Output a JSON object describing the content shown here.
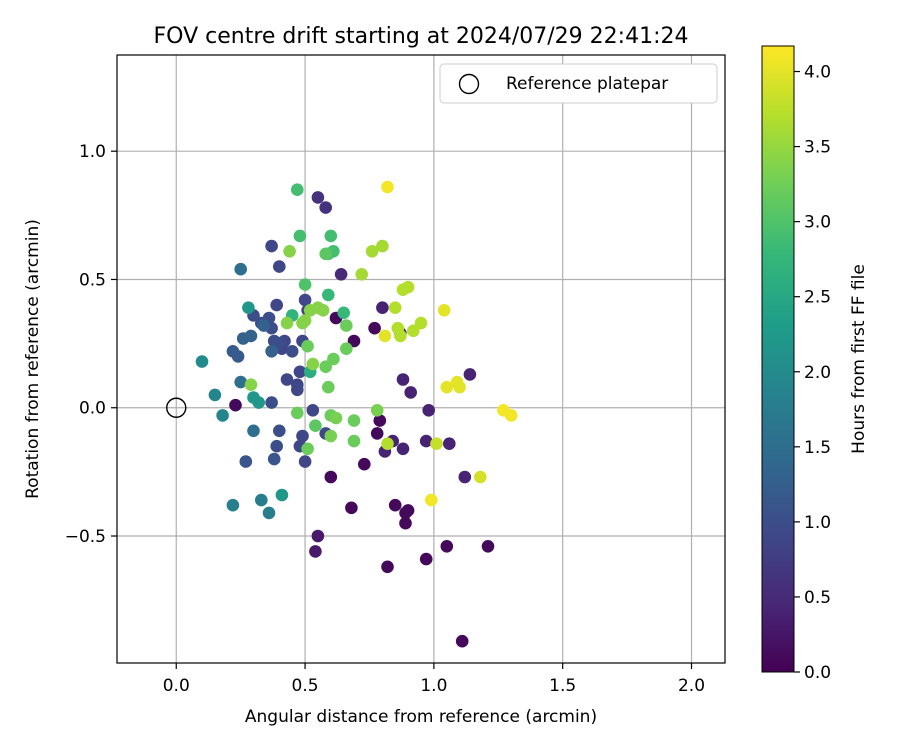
{
  "chart_data": {
    "type": "scatter",
    "title": "FOV centre drift starting at 2024/07/29 22:41:24",
    "xlabel": "Angular distance from reference (arcmin)",
    "ylabel": "Rotation from reference (arcmin)",
    "xlim": [
      -0.23,
      2.13
    ],
    "ylim": [
      -0.995,
      1.375
    ],
    "xticks": [
      "0.0",
      "0.5",
      "1.0",
      "1.5",
      "2.0"
    ],
    "xtick_values": [
      0,
      0.5,
      1.0,
      1.5,
      2.0
    ],
    "yticks": [
      "−0.5",
      "0.0",
      "0.5",
      "1.0"
    ],
    "ytick_values": [
      -0.5,
      0,
      0.5,
      1.0
    ],
    "grid": true,
    "legend": {
      "label": "Reference platepar",
      "position": "top-right"
    },
    "reference_point": {
      "x": 0.0,
      "y": 0.0
    },
    "colorbar": {
      "label": "Hours from first FF file",
      "range": [
        0.0,
        4.17
      ],
      "ticks": [
        "0.0",
        "0.5",
        "1.0",
        "1.5",
        "2.0",
        "2.5",
        "3.0",
        "3.5",
        "4.0"
      ],
      "tick_values": [
        0,
        0.5,
        1.0,
        1.5,
        2.0,
        2.5,
        3.0,
        3.5,
        4.0
      ],
      "colormap": "viridis",
      "stops": [
        "#440154",
        "#482878",
        "#3e4989",
        "#31688e",
        "#26828e",
        "#1f9e89",
        "#35b779",
        "#6ece58",
        "#b5de2b",
        "#fde725"
      ]
    },
    "points": [
      [
        0.23,
        0.01,
        0.1
      ],
      [
        0.62,
        0.35,
        0.1
      ],
      [
        0.69,
        0.26,
        0.1
      ],
      [
        0.77,
        0.31,
        0.1
      ],
      [
        0.6,
        -0.27,
        0.1
      ],
      [
        0.73,
        -0.22,
        0.1
      ],
      [
        0.78,
        -0.1,
        0.1
      ],
      [
        0.79,
        -0.05,
        0.1
      ],
      [
        0.68,
        -0.39,
        0.1
      ],
      [
        0.85,
        -0.38,
        0.1
      ],
      [
        0.89,
        -0.41,
        0.1
      ],
      [
        0.89,
        -0.45,
        0.1
      ],
      [
        0.9,
        -0.4,
        0.1
      ],
      [
        0.82,
        -0.62,
        0.1
      ],
      [
        0.97,
        -0.59,
        0.1
      ],
      [
        1.05,
        -0.54,
        0.1
      ],
      [
        1.21,
        -0.54,
        0.1
      ],
      [
        1.11,
        -0.91,
        0.1
      ],
      [
        0.54,
        -0.56,
        0.3
      ],
      [
        0.55,
        -0.5,
        0.3
      ],
      [
        0.8,
        0.39,
        0.4
      ],
      [
        0.87,
        0.29,
        0.4
      ],
      [
        0.81,
        -0.17,
        0.4
      ],
      [
        0.84,
        -0.13,
        0.4
      ],
      [
        0.88,
        -0.16,
        0.4
      ],
      [
        0.91,
        0.06,
        0.4
      ],
      [
        0.88,
        0.11,
        0.4
      ],
      [
        0.98,
        -0.01,
        0.4
      ],
      [
        0.97,
        -0.13,
        0.4
      ],
      [
        1.06,
        -0.14,
        0.4
      ],
      [
        1.14,
        0.13,
        0.4
      ],
      [
        1.12,
        -0.27,
        0.4
      ],
      [
        0.64,
        0.52,
        0.5
      ],
      [
        0.55,
        0.82,
        0.6
      ],
      [
        0.58,
        0.78,
        0.6
      ],
      [
        0.37,
        0.63,
        0.9
      ],
      [
        0.4,
        0.55,
        0.9
      ],
      [
        0.39,
        0.4,
        0.9
      ],
      [
        0.5,
        0.42,
        0.9
      ],
      [
        0.51,
        0.38,
        0.9
      ],
      [
        0.42,
        0.26,
        0.9
      ],
      [
        0.41,
        0.23,
        0.9
      ],
      [
        0.49,
        0.26,
        0.9
      ],
      [
        0.48,
        0.14,
        0.9
      ],
      [
        0.47,
        0.09,
        0.9
      ],
      [
        0.47,
        0.07,
        0.9
      ],
      [
        0.43,
        0.11,
        0.9
      ],
      [
        0.53,
        -0.01,
        0.9
      ],
      [
        0.49,
        -0.11,
        0.9
      ],
      [
        0.48,
        -0.15,
        0.9
      ],
      [
        0.5,
        -0.21,
        0.9
      ],
      [
        0.58,
        -0.1,
        0.9
      ],
      [
        0.37,
        0.02,
        1.0
      ],
      [
        0.3,
        0.36,
        1.0
      ],
      [
        0.33,
        0.33,
        1.0
      ],
      [
        0.36,
        0.35,
        1.0
      ],
      [
        0.37,
        0.31,
        1.0
      ],
      [
        0.38,
        0.26,
        1.0
      ],
      [
        0.4,
        0.25,
        1.0
      ],
      [
        0.45,
        0.22,
        1.0
      ],
      [
        0.4,
        -0.09,
        1.0
      ],
      [
        0.39,
        -0.15,
        1.0
      ],
      [
        0.38,
        -0.2,
        1.1
      ],
      [
        0.27,
        -0.21,
        1.1
      ],
      [
        0.22,
        0.22,
        1.2
      ],
      [
        0.24,
        0.2,
        1.2
      ],
      [
        0.26,
        0.27,
        1.3
      ],
      [
        0.29,
        0.28,
        1.3
      ],
      [
        0.34,
        0.32,
        1.3
      ],
      [
        0.37,
        0.22,
        1.3
      ],
      [
        0.25,
        0.54,
        1.5
      ],
      [
        0.25,
        0.1,
        1.5
      ],
      [
        0.3,
        -0.09,
        1.5
      ],
      [
        0.33,
        -0.36,
        1.8
      ],
      [
        0.36,
        -0.41,
        1.8
      ],
      [
        0.22,
        -0.38,
        1.8
      ],
      [
        0.18,
        -0.03,
        1.9
      ],
      [
        0.15,
        0.05,
        1.9
      ],
      [
        0.1,
        0.18,
        2.0
      ],
      [
        0.28,
        0.39,
        2.2
      ],
      [
        0.3,
        0.04,
        2.2
      ],
      [
        0.32,
        0.02,
        2.2
      ],
      [
        0.41,
        -0.34,
        2.2
      ],
      [
        0.45,
        0.36,
        2.7
      ],
      [
        0.52,
        0.14,
        2.6
      ],
      [
        0.59,
        0.44,
        2.8
      ],
      [
        0.65,
        0.37,
        2.8
      ],
      [
        0.6,
        0.67,
        2.9
      ],
      [
        0.59,
        0.6,
        2.9
      ],
      [
        0.61,
        0.61,
        2.9
      ],
      [
        0.47,
        0.85,
        2.9
      ],
      [
        0.48,
        0.67,
        2.9
      ],
      [
        0.5,
        0.48,
        3.0
      ],
      [
        0.58,
        0.6,
        3.1
      ],
      [
        0.54,
        -0.07,
        3.1
      ],
      [
        0.51,
        0.24,
        3.2
      ],
      [
        0.47,
        -0.02,
        3.2
      ],
      [
        0.51,
        -0.16,
        3.2
      ],
      [
        0.61,
        0.19,
        3.2
      ],
      [
        0.59,
        0.08,
        3.2
      ],
      [
        0.58,
        0.16,
        3.2
      ],
      [
        0.6,
        -0.03,
        3.2
      ],
      [
        0.66,
        0.32,
        3.2
      ],
      [
        0.66,
        0.23,
        3.2
      ],
      [
        0.69,
        -0.05,
        3.2
      ],
      [
        0.69,
        -0.13,
        3.2
      ],
      [
        0.78,
        -0.01,
        3.3
      ],
      [
        0.6,
        -0.11,
        3.3
      ],
      [
        0.62,
        -0.04,
        3.3
      ],
      [
        0.29,
        0.09,
        3.4
      ],
      [
        0.53,
        0.17,
        3.4
      ],
      [
        0.55,
        0.39,
        3.4
      ],
      [
        0.43,
        0.33,
        3.4
      ],
      [
        0.44,
        0.61,
        3.4
      ],
      [
        0.5,
        0.34,
        3.4
      ],
      [
        0.49,
        0.33,
        3.4
      ],
      [
        0.52,
        0.38,
        3.4
      ],
      [
        0.57,
        0.38,
        3.4
      ],
      [
        0.72,
        0.52,
        3.6
      ],
      [
        0.76,
        0.61,
        3.6
      ],
      [
        0.8,
        0.63,
        3.6
      ],
      [
        0.82,
        -0.14,
        3.7
      ],
      [
        0.85,
        0.39,
        3.7
      ],
      [
        0.87,
        0.28,
        3.7
      ],
      [
        0.86,
        0.31,
        3.7
      ],
      [
        0.88,
        0.46,
        3.7
      ],
      [
        0.9,
        0.47,
        3.7
      ],
      [
        0.92,
        0.3,
        3.7
      ],
      [
        0.95,
        0.33,
        3.7
      ],
      [
        1.01,
        -0.14,
        3.8
      ],
      [
        1.18,
        -0.27,
        3.9
      ],
      [
        1.04,
        0.38,
        4.0
      ],
      [
        1.05,
        0.08,
        4.0
      ],
      [
        1.09,
        0.1,
        4.0
      ],
      [
        1.1,
        0.08,
        4.0
      ],
      [
        0.81,
        0.28,
        4.0
      ],
      [
        0.99,
        -0.36,
        4.1
      ],
      [
        1.27,
        -0.01,
        4.1
      ],
      [
        1.3,
        -0.03,
        4.1
      ],
      [
        0.82,
        0.86,
        4.1
      ]
    ]
  }
}
